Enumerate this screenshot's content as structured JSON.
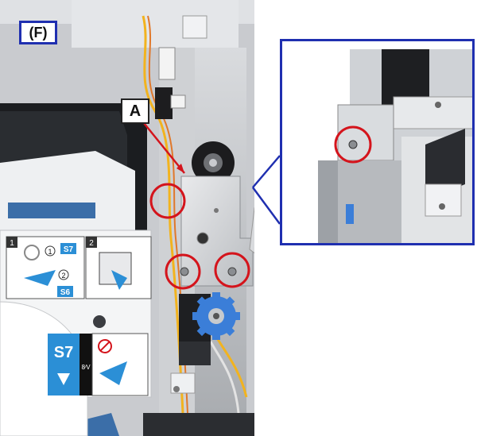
{
  "section_label": "(F)",
  "callout_label": "A",
  "sticker": {
    "step1_number": "1",
    "step2_number": "2",
    "circle_1": "1",
    "circle_2": "2",
    "tag_s7": "S7",
    "tag_s6": "S6",
    "big_s7": "S7",
    "small_text": "8∕V"
  },
  "colors": {
    "highlight_circle": "#d4141c",
    "inset_frame": "#1f2fb0",
    "arrow": "#d4141c",
    "knob": "#3b7ed8",
    "sticker_blue": "#2b8fd6"
  }
}
